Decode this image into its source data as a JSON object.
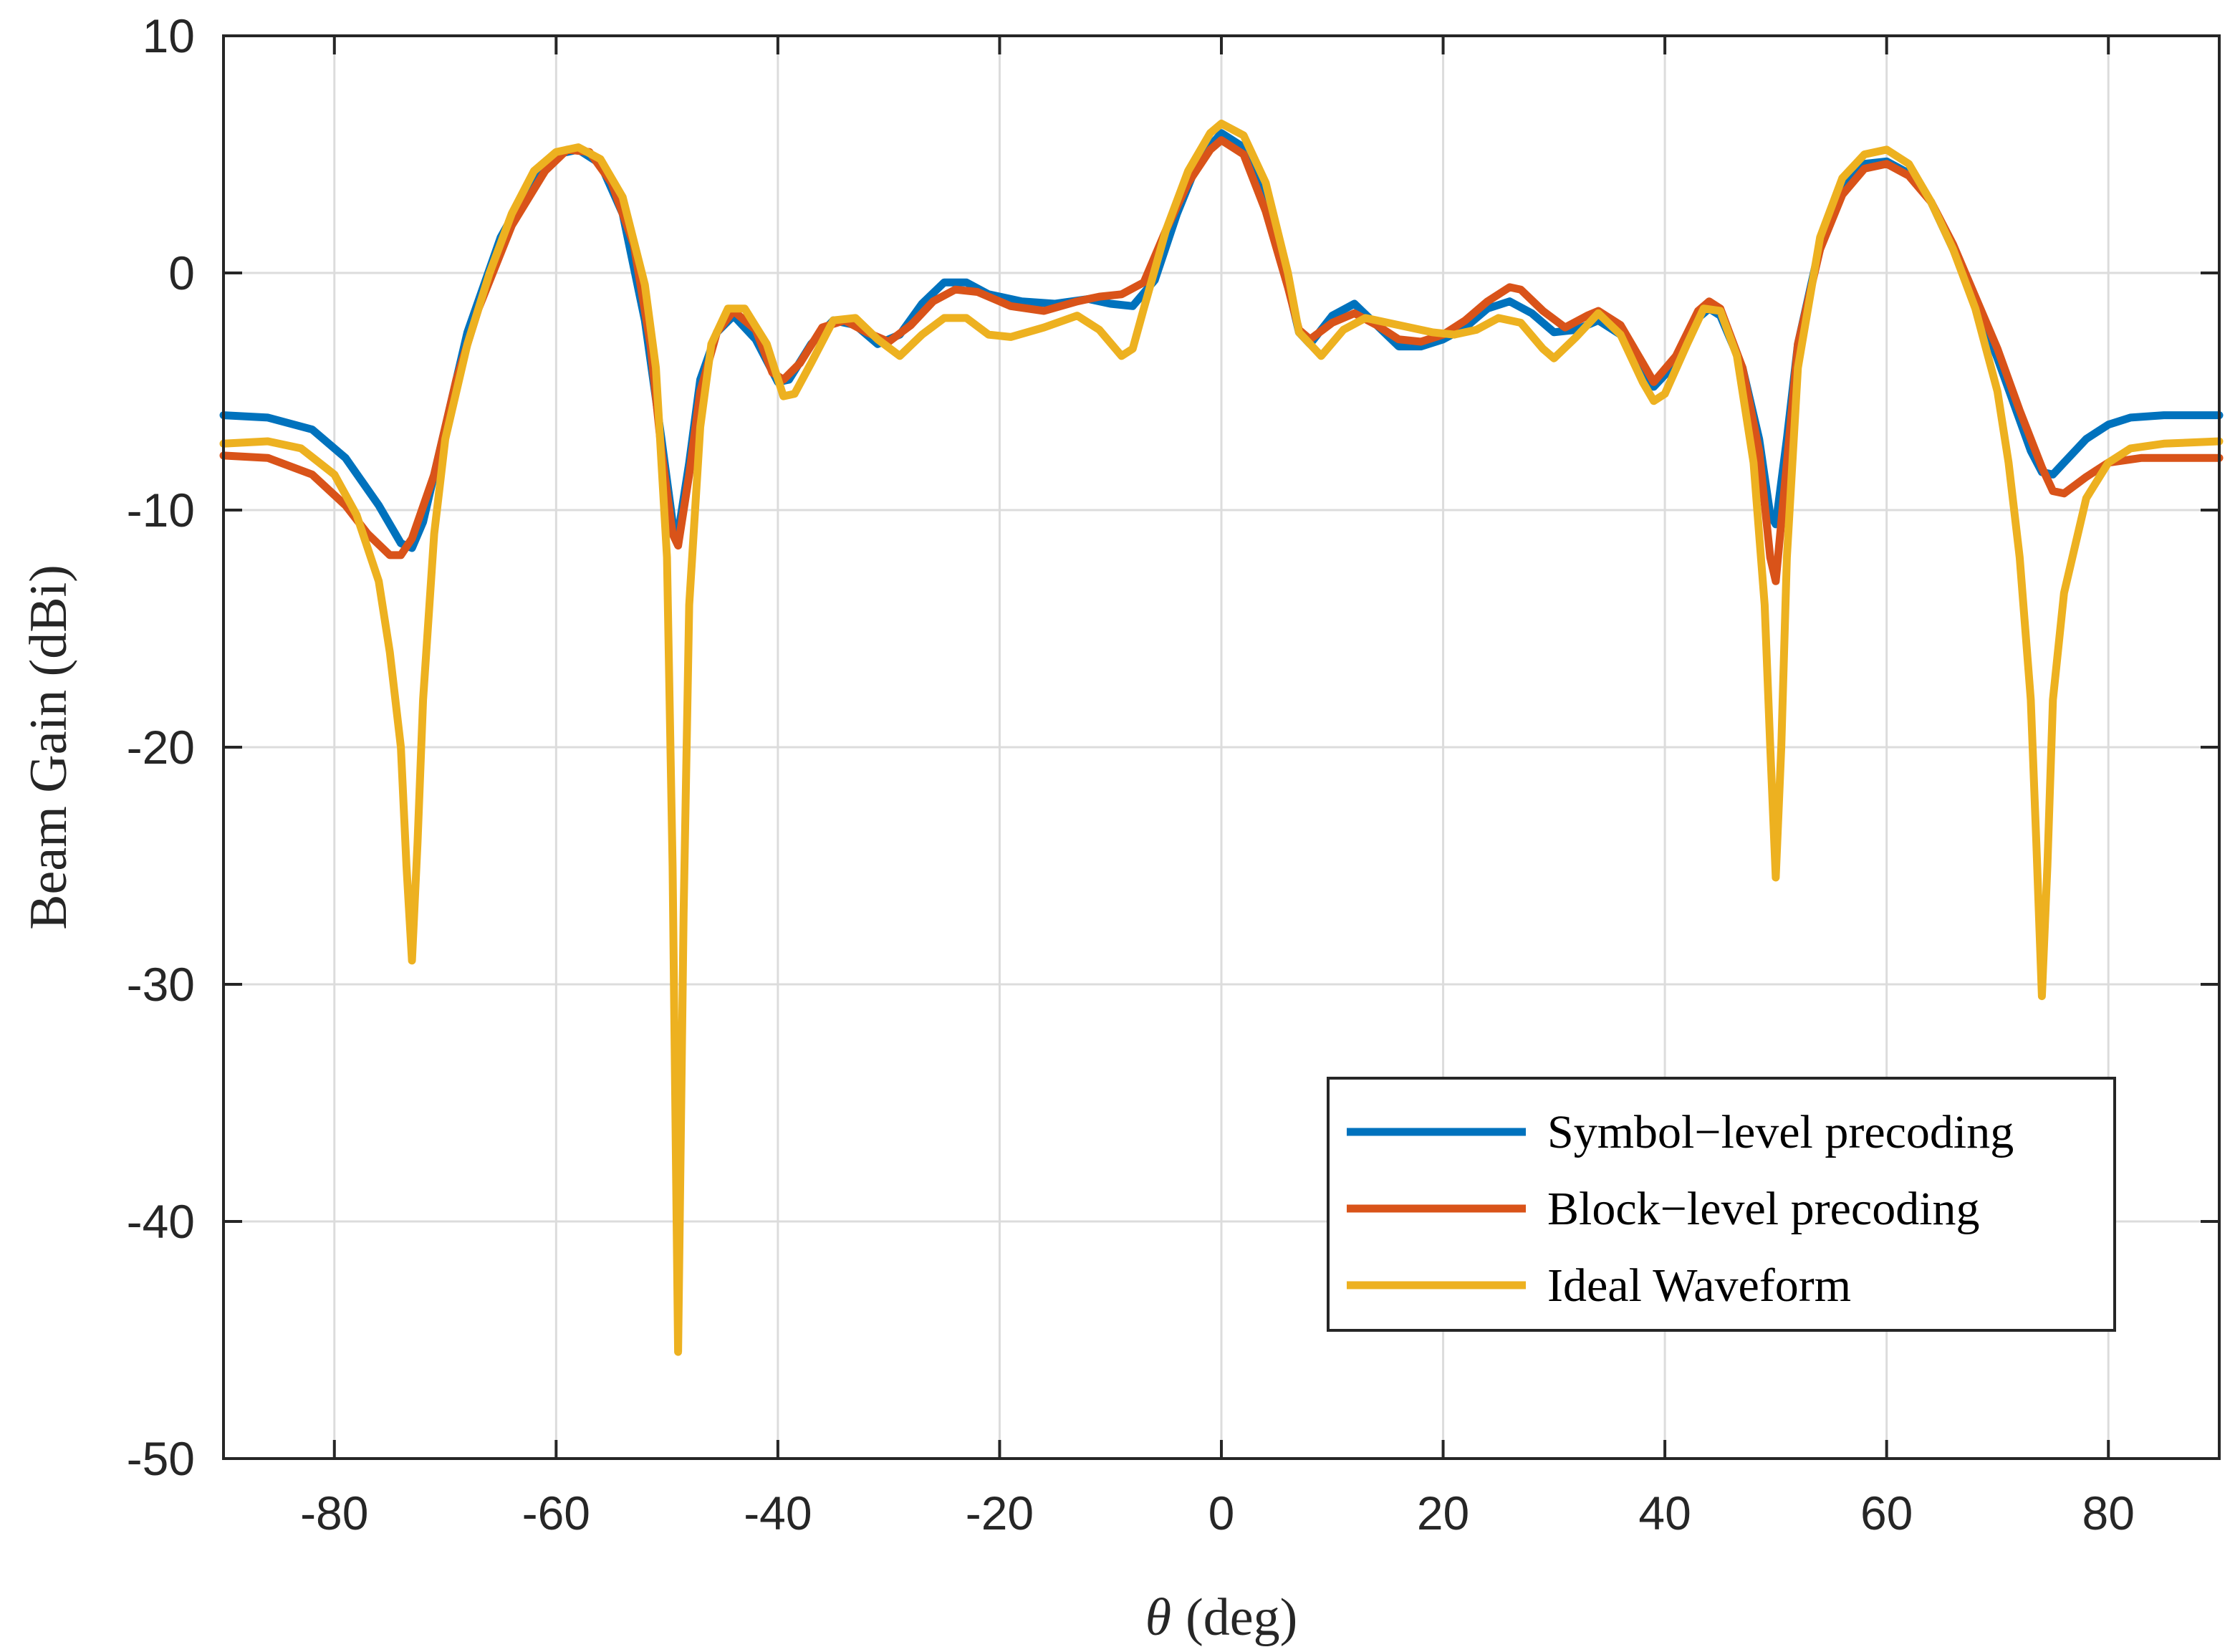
{
  "chart_data": {
    "type": "line",
    "title": "",
    "xlabel_symbol": "θ",
    "xlabel_unit": "(deg)",
    "ylabel": "Beam Gain (dBi)",
    "xlim": [
      -90,
      90
    ],
    "ylim": [
      -50,
      10
    ],
    "grid": true,
    "legend_position": "bottom-right",
    "x_ticks": [
      -80,
      -60,
      -40,
      -20,
      0,
      20,
      40,
      60,
      80
    ],
    "x_tick_labels": [
      "-80",
      "-60",
      "-40",
      "-20",
      "0",
      "20",
      "40",
      "60",
      "80"
    ],
    "y_ticks": [
      10,
      0,
      -10,
      -20,
      -30,
      -40,
      -50
    ],
    "y_tick_labels": [
      "10",
      "0",
      "-10",
      "-20",
      "-30",
      "-40",
      "-50"
    ],
    "series": [
      {
        "name": "Symbol−level precoding",
        "color": "#0072BD",
        "points": [
          [
            -90,
            -6
          ],
          [
            -86,
            -6.1
          ],
          [
            -82,
            -6.6
          ],
          [
            -79,
            -7.8
          ],
          [
            -76,
            -9.8
          ],
          [
            -74,
            -11.4
          ],
          [
            -73,
            -11.6
          ],
          [
            -72,
            -10.5
          ],
          [
            -70,
            -6.5
          ],
          [
            -68,
            -2.5
          ],
          [
            -65,
            1.5
          ],
          [
            -62,
            4
          ],
          [
            -60,
            5
          ],
          [
            -58,
            5.2
          ],
          [
            -56,
            4.6
          ],
          [
            -54,
            2.5
          ],
          [
            -52,
            -2
          ],
          [
            -50.5,
            -7
          ],
          [
            -49.5,
            -10.5
          ],
          [
            -49,
            -11
          ],
          [
            -48,
            -8
          ],
          [
            -47,
            -4.5
          ],
          [
            -45.5,
            -2.5
          ],
          [
            -44,
            -1.8
          ],
          [
            -42,
            -2.8
          ],
          [
            -40,
            -4.6
          ],
          [
            -39,
            -4.5
          ],
          [
            -37,
            -3
          ],
          [
            -35,
            -2
          ],
          [
            -33,
            -2.2
          ],
          [
            -31,
            -3
          ],
          [
            -29,
            -2.6
          ],
          [
            -27,
            -1.3
          ],
          [
            -25,
            -0.4
          ],
          [
            -23,
            -0.4
          ],
          [
            -21,
            -0.9
          ],
          [
            -18,
            -1.2
          ],
          [
            -15,
            -1.3
          ],
          [
            -12,
            -1.1
          ],
          [
            -10,
            -1.3
          ],
          [
            -8,
            -1.4
          ],
          [
            -6,
            -0.3
          ],
          [
            -4,
            2.5
          ],
          [
            -2,
            4.8
          ],
          [
            0,
            5.9
          ],
          [
            2,
            5.3
          ],
          [
            4,
            3
          ],
          [
            6,
            -0.5
          ],
          [
            7,
            -2.5
          ],
          [
            8,
            -3
          ],
          [
            10,
            -1.8
          ],
          [
            12,
            -1.3
          ],
          [
            14,
            -2.2
          ],
          [
            16,
            -3.1
          ],
          [
            18,
            -3.1
          ],
          [
            20,
            -2.8
          ],
          [
            22,
            -2.3
          ],
          [
            24,
            -1.5
          ],
          [
            26,
            -1.2
          ],
          [
            28,
            -1.7
          ],
          [
            30,
            -2.5
          ],
          [
            32,
            -2.4
          ],
          [
            34,
            -2
          ],
          [
            36,
            -2.6
          ],
          [
            38,
            -4.2
          ],
          [
            39,
            -4.8
          ],
          [
            41,
            -3.8
          ],
          [
            43,
            -1.9
          ],
          [
            44,
            -1.5
          ],
          [
            45,
            -1.8
          ],
          [
            47,
            -4
          ],
          [
            48.5,
            -7
          ],
          [
            49.5,
            -10.2
          ],
          [
            50,
            -10.6
          ],
          [
            51,
            -7
          ],
          [
            52,
            -3
          ],
          [
            54,
            1.2
          ],
          [
            56,
            3.6
          ],
          [
            58,
            4.6
          ],
          [
            60,
            4.7
          ],
          [
            62,
            4.2
          ],
          [
            64,
            3
          ],
          [
            66,
            1
          ],
          [
            68,
            -1.2
          ],
          [
            70,
            -3.6
          ],
          [
            72,
            -6.2
          ],
          [
            73,
            -7.5
          ],
          [
            74,
            -8.4
          ],
          [
            75,
            -8.5
          ],
          [
            76,
            -8
          ],
          [
            78,
            -7
          ],
          [
            80,
            -6.4
          ],
          [
            82,
            -6.1
          ],
          [
            85,
            -6
          ],
          [
            90,
            -6
          ]
        ]
      },
      {
        "name": "Block−level precoding",
        "color": "#D95319",
        "points": [
          [
            -90,
            -7.7
          ],
          [
            -86,
            -7.8
          ],
          [
            -82,
            -8.5
          ],
          [
            -79,
            -9.8
          ],
          [
            -77,
            -11
          ],
          [
            -75,
            -11.9
          ],
          [
            -74,
            -11.9
          ],
          [
            -73,
            -11.2
          ],
          [
            -71,
            -8.5
          ],
          [
            -69,
            -4.5
          ],
          [
            -67,
            -1.5
          ],
          [
            -64,
            2
          ],
          [
            -61,
            4.3
          ],
          [
            -59,
            5.2
          ],
          [
            -57,
            5.1
          ],
          [
            -55,
            3.8
          ],
          [
            -53,
            1.2
          ],
          [
            -51.5,
            -3
          ],
          [
            -50.5,
            -7.5
          ],
          [
            -49.5,
            -11
          ],
          [
            -49,
            -11.5
          ],
          [
            -48,
            -8.5
          ],
          [
            -47,
            -5
          ],
          [
            -45.5,
            -2.5
          ],
          [
            -44,
            -1.6
          ],
          [
            -42,
            -2.4
          ],
          [
            -40.5,
            -4.2
          ],
          [
            -39.5,
            -4.5
          ],
          [
            -38,
            -3.8
          ],
          [
            -36,
            -2.3
          ],
          [
            -34,
            -2
          ],
          [
            -32,
            -2.5
          ],
          [
            -30,
            -2.9
          ],
          [
            -28,
            -2.2
          ],
          [
            -26,
            -1.2
          ],
          [
            -24,
            -0.7
          ],
          [
            -22,
            -0.8
          ],
          [
            -19,
            -1.4
          ],
          [
            -16,
            -1.6
          ],
          [
            -13,
            -1.2
          ],
          [
            -11,
            -1
          ],
          [
            -9,
            -0.9
          ],
          [
            -7,
            -0.4
          ],
          [
            -5,
            1.8
          ],
          [
            -3,
            3.8
          ],
          [
            -1,
            5.2
          ],
          [
            0,
            5.6
          ],
          [
            2,
            5
          ],
          [
            4,
            2.6
          ],
          [
            6,
            -0.6
          ],
          [
            7,
            -2.4
          ],
          [
            8,
            -2.8
          ],
          [
            10,
            -2.1
          ],
          [
            12,
            -1.7
          ],
          [
            14,
            -2.2
          ],
          [
            16,
            -2.8
          ],
          [
            18,
            -2.9
          ],
          [
            20,
            -2.6
          ],
          [
            22,
            -2
          ],
          [
            24,
            -1.2
          ],
          [
            26,
            -0.6
          ],
          [
            27,
            -0.7
          ],
          [
            29,
            -1.6
          ],
          [
            31,
            -2.3
          ],
          [
            33,
            -1.8
          ],
          [
            34,
            -1.6
          ],
          [
            36,
            -2.2
          ],
          [
            38,
            -3.8
          ],
          [
            39,
            -4.6
          ],
          [
            41,
            -3.5
          ],
          [
            43,
            -1.6
          ],
          [
            44,
            -1.2
          ],
          [
            45,
            -1.5
          ],
          [
            47,
            -4
          ],
          [
            48.5,
            -7.5
          ],
          [
            49.5,
            -12
          ],
          [
            50,
            -13
          ],
          [
            51,
            -8
          ],
          [
            52,
            -3
          ],
          [
            54,
            1
          ],
          [
            56,
            3.3
          ],
          [
            58,
            4.4
          ],
          [
            60,
            4.6
          ],
          [
            62,
            4.1
          ],
          [
            64,
            3
          ],
          [
            66,
            1.2
          ],
          [
            68,
            -1
          ],
          [
            70,
            -3.2
          ],
          [
            72,
            -5.8
          ],
          [
            74,
            -8.2
          ],
          [
            75,
            -9.2
          ],
          [
            76,
            -9.3
          ],
          [
            78,
            -8.6
          ],
          [
            80,
            -8
          ],
          [
            83,
            -7.8
          ],
          [
            90,
            -7.8
          ]
        ]
      },
      {
        "name": "Ideal Waveform",
        "color": "#EDB120",
        "points": [
          [
            -90,
            -7.2
          ],
          [
            -86,
            -7.1
          ],
          [
            -83,
            -7.4
          ],
          [
            -80,
            -8.5
          ],
          [
            -78,
            -10.2
          ],
          [
            -76,
            -13
          ],
          [
            -75,
            -16
          ],
          [
            -74,
            -20
          ],
          [
            -73.5,
            -25
          ],
          [
            -73,
            -29
          ],
          [
            -72.5,
            -24
          ],
          [
            -72,
            -18
          ],
          [
            -71,
            -11
          ],
          [
            -70,
            -7
          ],
          [
            -68,
            -3
          ],
          [
            -66,
            0
          ],
          [
            -64,
            2.5
          ],
          [
            -62,
            4.3
          ],
          [
            -60,
            5.1
          ],
          [
            -58,
            5.3
          ],
          [
            -56,
            4.8
          ],
          [
            -54,
            3.2
          ],
          [
            -52,
            -0.5
          ],
          [
            -51,
            -4
          ],
          [
            -50,
            -12
          ],
          [
            -49.5,
            -25
          ],
          [
            -49,
            -45.5
          ],
          [
            -48.5,
            -27
          ],
          [
            -48,
            -14
          ],
          [
            -47,
            -6.5
          ],
          [
            -46,
            -3
          ],
          [
            -44.5,
            -1.5
          ],
          [
            -43,
            -1.5
          ],
          [
            -41,
            -3
          ],
          [
            -39.5,
            -5.2
          ],
          [
            -38.5,
            -5.1
          ],
          [
            -37,
            -3.8
          ],
          [
            -35,
            -2
          ],
          [
            -33,
            -1.9
          ],
          [
            -31,
            -2.8
          ],
          [
            -29,
            -3.5
          ],
          [
            -27,
            -2.6
          ],
          [
            -25,
            -1.9
          ],
          [
            -23,
            -1.9
          ],
          [
            -21,
            -2.6
          ],
          [
            -19,
            -2.7
          ],
          [
            -16,
            -2.3
          ],
          [
            -13,
            -1.8
          ],
          [
            -11,
            -2.4
          ],
          [
            -9,
            -3.5
          ],
          [
            -8,
            -3.2
          ],
          [
            -7,
            -1.5
          ],
          [
            -5,
            1.8
          ],
          [
            -3,
            4.3
          ],
          [
            -1,
            5.9
          ],
          [
            0,
            6.3
          ],
          [
            2,
            5.8
          ],
          [
            4,
            3.8
          ],
          [
            6,
            0
          ],
          [
            7,
            -2.5
          ],
          [
            9,
            -3.5
          ],
          [
            11,
            -2.4
          ],
          [
            13,
            -1.9
          ],
          [
            15,
            -2.1
          ],
          [
            17,
            -2.3
          ],
          [
            19,
            -2.5
          ],
          [
            21,
            -2.6
          ],
          [
            23,
            -2.4
          ],
          [
            25,
            -1.9
          ],
          [
            27,
            -2.1
          ],
          [
            29,
            -3.2
          ],
          [
            30,
            -3.6
          ],
          [
            32,
            -2.7
          ],
          [
            34,
            -1.7
          ],
          [
            36,
            -2.6
          ],
          [
            38,
            -4.6
          ],
          [
            39,
            -5.4
          ],
          [
            40,
            -5.1
          ],
          [
            42,
            -3
          ],
          [
            43.5,
            -1.5
          ],
          [
            45,
            -1.6
          ],
          [
            46.5,
            -3.5
          ],
          [
            48,
            -8
          ],
          [
            49,
            -14
          ],
          [
            49.5,
            -20
          ],
          [
            50,
            -25.5
          ],
          [
            50.5,
            -20
          ],
          [
            51,
            -12
          ],
          [
            52,
            -4
          ],
          [
            54,
            1.5
          ],
          [
            56,
            4
          ],
          [
            58,
            5
          ],
          [
            60,
            5.2
          ],
          [
            62,
            4.6
          ],
          [
            64,
            3
          ],
          [
            66,
            1
          ],
          [
            68,
            -1.5
          ],
          [
            70,
            -5
          ],
          [
            71,
            -8
          ],
          [
            72,
            -12
          ],
          [
            73,
            -18
          ],
          [
            73.5,
            -24
          ],
          [
            74,
            -30.5
          ],
          [
            74.5,
            -25
          ],
          [
            75,
            -18
          ],
          [
            76,
            -13.5
          ],
          [
            78,
            -9.5
          ],
          [
            80,
            -8
          ],
          [
            82,
            -7.4
          ],
          [
            85,
            -7.2
          ],
          [
            90,
            -7.1
          ]
        ]
      }
    ]
  }
}
